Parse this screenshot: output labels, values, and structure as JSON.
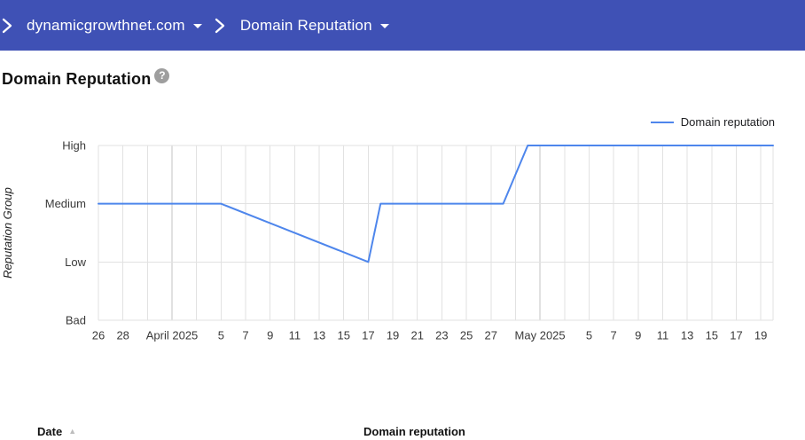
{
  "theme": {
    "header_bar": "#3f51b5",
    "grid": "#e2e2e2",
    "grid_month": "#c3c3c3",
    "axis_text": "#3a3a3a",
    "axis_title_text": "#1f1f1f",
    "line": "#4e86ec",
    "help_icon_bg": "#9e9e9e",
    "sort_icon": "#bdbdbd"
  },
  "breadcrumb": {
    "items": [
      {
        "label": "dynamicgrowthnet.com",
        "has_dropdown": true
      },
      {
        "label": "Domain Reputation",
        "has_dropdown": true
      }
    ]
  },
  "page": {
    "title": "Domain Reputation",
    "help_label": "?"
  },
  "legend": {
    "label": "Domain reputation"
  },
  "chart_data": {
    "type": "line",
    "title": "",
    "xlabel": "",
    "ylabel": "Reputation Group",
    "grid": true,
    "legend_position": "top-right",
    "y_categories": [
      "Bad",
      "Low",
      "Medium",
      "High"
    ],
    "x_range": {
      "start": "2025-03-26",
      "end": "2025-05-20",
      "total_days": 55
    },
    "x_ticks": [
      {
        "day": 0,
        "label": "26"
      },
      {
        "day": 2,
        "label": "28"
      },
      {
        "day": 6,
        "label": "April 2025",
        "month_boundary": true
      },
      {
        "day": 10,
        "label": "5"
      },
      {
        "day": 12,
        "label": "7"
      },
      {
        "day": 14,
        "label": "9"
      },
      {
        "day": 16,
        "label": "11"
      },
      {
        "day": 18,
        "label": "13"
      },
      {
        "day": 20,
        "label": "15"
      },
      {
        "day": 22,
        "label": "17"
      },
      {
        "day": 24,
        "label": "19"
      },
      {
        "day": 26,
        "label": "21"
      },
      {
        "day": 28,
        "label": "23"
      },
      {
        "day": 30,
        "label": "25"
      },
      {
        "day": 32,
        "label": "27"
      },
      {
        "day": 36,
        "label": "May 2025",
        "month_boundary": true
      },
      {
        "day": 40,
        "label": "5"
      },
      {
        "day": 42,
        "label": "7"
      },
      {
        "day": 44,
        "label": "9"
      },
      {
        "day": 46,
        "label": "11"
      },
      {
        "day": 48,
        "label": "13"
      },
      {
        "day": 50,
        "label": "15"
      },
      {
        "day": 52,
        "label": "17"
      },
      {
        "day": 54,
        "label": "19"
      }
    ],
    "series": [
      {
        "name": "Domain reputation",
        "color": "#4e86ec",
        "points": [
          {
            "day": 0,
            "date": "2025-03-26",
            "value": "Medium"
          },
          {
            "day": 10,
            "date": "2025-04-05",
            "value": "Medium"
          },
          {
            "day": 22,
            "date": "2025-04-17",
            "value": "Low"
          },
          {
            "day": 23,
            "date": "2025-04-18",
            "value": "Medium"
          },
          {
            "day": 33,
            "date": "2025-04-28",
            "value": "Medium"
          },
          {
            "day": 35,
            "date": "2025-04-30",
            "value": "High"
          },
          {
            "day": 55,
            "date": "2025-05-20",
            "value": "High"
          }
        ]
      }
    ]
  },
  "table": {
    "columns": [
      {
        "label": "Date",
        "sorted": "asc"
      },
      {
        "label": "Domain reputation",
        "sorted": null
      }
    ],
    "sort_asc_icon": "▲"
  }
}
